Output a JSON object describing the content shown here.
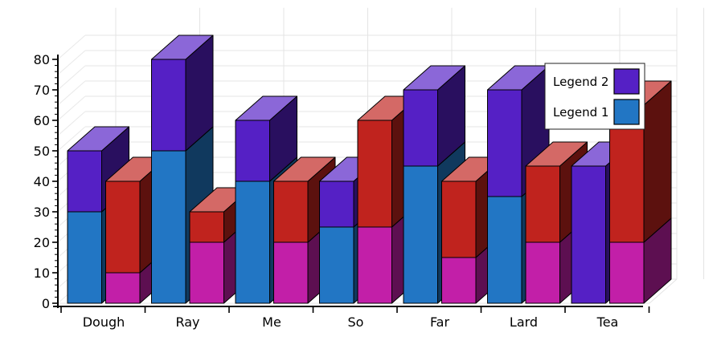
{
  "chart_data": {
    "type": "bar",
    "subtype": "3d-stacked-grouped",
    "title": "",
    "xlabel": "",
    "ylabel": "",
    "ylim": [
      0,
      80
    ],
    "yticks": [
      "0",
      "10",
      "20",
      "30",
      "40",
      "50",
      "60",
      "70",
      "80"
    ],
    "categories": [
      "Dough",
      "Ray",
      "Me",
      "So",
      "Far",
      "Lard",
      "Tea"
    ],
    "grid": true,
    "legend_position": "top-right",
    "legend": [
      {
        "label": "Legend 2",
        "color": "#5520c5"
      },
      {
        "label": "Legend 1",
        "color": "#2276c4"
      }
    ],
    "stacks": [
      {
        "name": "stack-a",
        "segments": [
          {
            "name": "Legend 1",
            "color": "#2276c4",
            "values": [
              30,
              50,
              40,
              25,
              45,
              35,
              0
            ]
          },
          {
            "name": "Legend 2",
            "color": "#5520c5",
            "values": [
              20,
              30,
              20,
              15,
              25,
              35,
              45
            ]
          }
        ]
      },
      {
        "name": "stack-b",
        "segments": [
          {
            "color": "#c21fa8",
            "values": [
              10,
              20,
              20,
              25,
              15,
              20,
              20
            ]
          },
          {
            "color": "#c0231e",
            "values": [
              30,
              10,
              20,
              35,
              25,
              25,
              45
            ]
          }
        ]
      }
    ]
  }
}
